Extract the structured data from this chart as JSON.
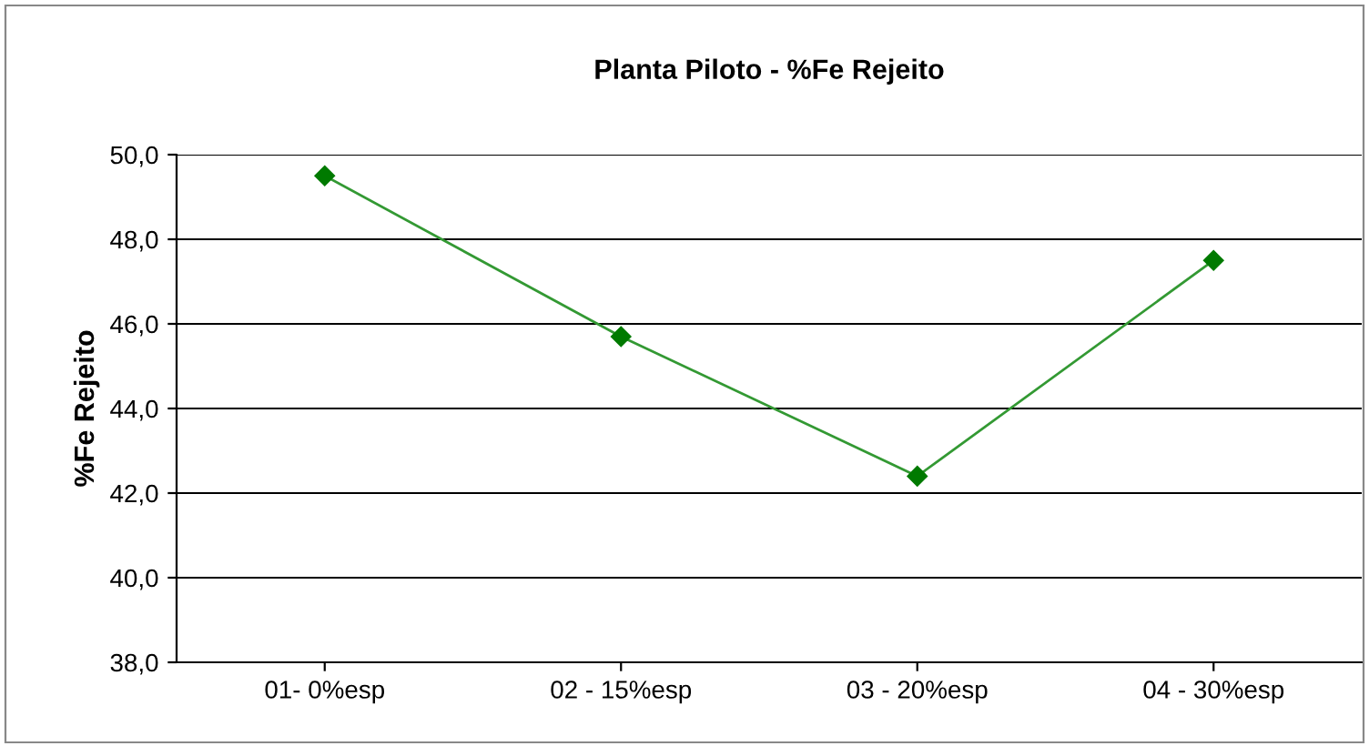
{
  "chart_data": {
    "type": "line",
    "title": "Planta Piloto - %Fe Rejeito",
    "ylabel": "%Fe Rejeito",
    "categories": [
      "01- 0%esp",
      "02 - 15%esp",
      "03 - 20%esp",
      "04 - 30%esp"
    ],
    "series": [
      {
        "color": "#339933",
        "values": [
          49.5,
          45.7,
          42.4,
          47.5
        ]
      }
    ],
    "ylim": [
      38,
      50
    ],
    "yticks": [
      {
        "value": 38,
        "label": "38,0"
      },
      {
        "value": 40,
        "label": "40,0"
      },
      {
        "value": 42,
        "label": "42,0"
      },
      {
        "value": 44,
        "label": "44,0"
      },
      {
        "value": 46,
        "label": "46,0"
      },
      {
        "value": 48,
        "label": "48,0"
      },
      {
        "value": 50,
        "label": "50,0"
      }
    ],
    "grid": "y",
    "marker": "diamond",
    "line_style": "solid"
  }
}
